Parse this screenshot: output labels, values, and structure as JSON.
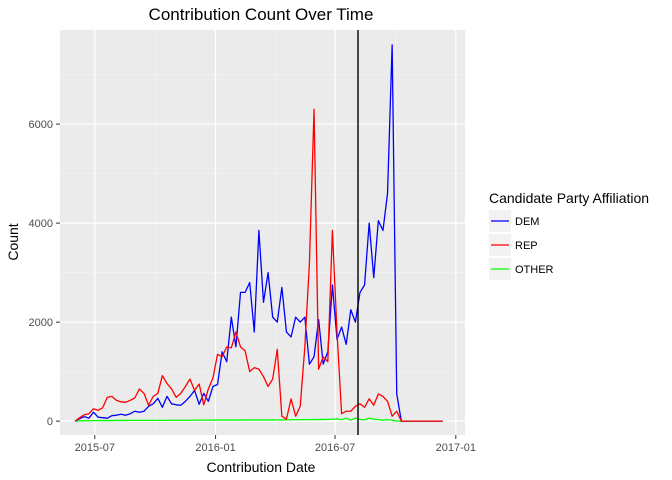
{
  "chart_data": {
    "type": "line",
    "title": "Contribution Count Over Time",
    "xlabel": "Contribution Date",
    "ylabel": "Count",
    "x_axis_type": "date",
    "xlim": [
      "2015-05-09",
      "2017-01-15"
    ],
    "ylim": [
      -280,
      7900
    ],
    "x_ticks": [
      "2015-07-01",
      "2016-01-01",
      "2016-07-01",
      "2017-01-01"
    ],
    "x_tick_labels": [
      "2015-07",
      "2016-01",
      "2016-07",
      "2017-01"
    ],
    "y_ticks": [
      0,
      2000,
      4000,
      6000
    ],
    "y_tick_labels": [
      "0",
      "2000",
      "4000",
      "6000"
    ],
    "grid": true,
    "panel_background": "#ebebeb",
    "vline": {
      "x": "2016-08-05",
      "color": "#000000"
    },
    "legend": {
      "title": "Candidate Party Affiliation",
      "placement": "right"
    },
    "x": [
      "2015-06-01",
      "2015-06-08",
      "2015-06-15",
      "2015-06-22",
      "2015-06-29",
      "2015-07-06",
      "2015-07-13",
      "2015-07-20",
      "2015-07-27",
      "2015-08-03",
      "2015-08-10",
      "2015-08-17",
      "2015-08-24",
      "2015-08-31",
      "2015-09-07",
      "2015-09-14",
      "2015-09-21",
      "2015-09-28",
      "2015-10-05",
      "2015-10-12",
      "2015-10-19",
      "2015-10-26",
      "2015-11-02",
      "2015-11-09",
      "2015-11-16",
      "2015-11-23",
      "2015-11-30",
      "2015-12-07",
      "2015-12-14",
      "2015-12-21",
      "2015-12-28",
      "2016-01-04",
      "2016-01-11",
      "2016-01-18",
      "2016-01-25",
      "2016-02-01",
      "2016-02-08",
      "2016-02-15",
      "2016-02-22",
      "2016-02-29",
      "2016-03-07",
      "2016-03-14",
      "2016-03-21",
      "2016-03-28",
      "2016-04-04",
      "2016-04-11",
      "2016-04-18",
      "2016-04-25",
      "2016-05-02",
      "2016-05-09",
      "2016-05-16",
      "2016-05-23",
      "2016-05-30",
      "2016-06-06",
      "2016-06-13",
      "2016-06-20",
      "2016-06-27",
      "2016-07-04",
      "2016-07-11",
      "2016-07-18",
      "2016-07-25",
      "2016-08-01",
      "2016-08-08",
      "2016-08-15",
      "2016-08-22",
      "2016-08-29",
      "2016-09-05",
      "2016-09-12",
      "2016-09-19",
      "2016-09-26",
      "2016-10-03",
      "2016-10-10",
      "2016-10-17",
      "2016-10-24",
      "2016-10-31",
      "2016-11-07",
      "2016-11-14",
      "2016-11-21",
      "2016-11-28",
      "2016-12-05",
      "2016-12-12"
    ],
    "series": [
      {
        "name": "DEM",
        "color": "#0000ff",
        "values": [
          0,
          50,
          90,
          60,
          180,
          80,
          70,
          60,
          110,
          120,
          140,
          120,
          150,
          200,
          180,
          200,
          300,
          350,
          460,
          280,
          500,
          350,
          330,
          320,
          400,
          500,
          620,
          340,
          560,
          400,
          700,
          740,
          1400,
          1200,
          2100,
          1500,
          2600,
          2600,
          2800,
          1800,
          3850,
          2400,
          3000,
          2100,
          2000,
          2700,
          1800,
          1700,
          2100,
          2000,
          2100,
          1150,
          1300,
          2050,
          1150,
          1400,
          2750,
          1650,
          1900,
          1550,
          2250,
          2000,
          2600,
          2750,
          4000,
          2900,
          4050,
          3850,
          4600,
          7600,
          550,
          0,
          0,
          0,
          0,
          0,
          0,
          0,
          0,
          0,
          0
        ]
      },
      {
        "name": "REP",
        "color": "#ff0000",
        "values": [
          0,
          70,
          130,
          150,
          250,
          220,
          270,
          480,
          500,
          420,
          390,
          380,
          420,
          470,
          650,
          560,
          320,
          500,
          560,
          920,
          760,
          650,
          480,
          560,
          700,
          850,
          620,
          750,
          330,
          650,
          870,
          1350,
          1300,
          1500,
          1480,
          1800,
          1500,
          1420,
          1000,
          1080,
          1050,
          900,
          700,
          850,
          1450,
          100,
          40,
          450,
          100,
          300,
          1500,
          3200,
          6300,
          1050,
          1300,
          1200,
          3850,
          1800,
          150,
          200,
          200,
          300,
          350,
          280,
          450,
          320,
          550,
          500,
          400,
          100,
          200,
          0,
          0,
          0,
          0,
          0,
          0,
          0,
          0,
          0,
          0
        ]
      },
      {
        "name": "OTHER",
        "color": "#00ff00",
        "values": [
          0,
          5,
          8,
          8,
          10,
          10,
          12,
          12,
          12,
          14,
          14,
          14,
          15,
          15,
          15,
          15,
          15,
          16,
          16,
          16,
          16,
          18,
          18,
          18,
          18,
          18,
          20,
          20,
          20,
          20,
          20,
          22,
          22,
          22,
          22,
          22,
          22,
          24,
          24,
          24,
          24,
          24,
          24,
          24,
          26,
          26,
          26,
          28,
          28,
          30,
          30,
          30,
          32,
          32,
          34,
          36,
          40,
          45,
          30,
          60,
          20,
          60,
          35,
          25,
          60,
          40,
          30,
          20,
          30,
          20,
          0,
          0,
          0,
          0,
          0,
          0,
          0,
          0,
          0,
          0,
          0
        ]
      }
    ]
  }
}
